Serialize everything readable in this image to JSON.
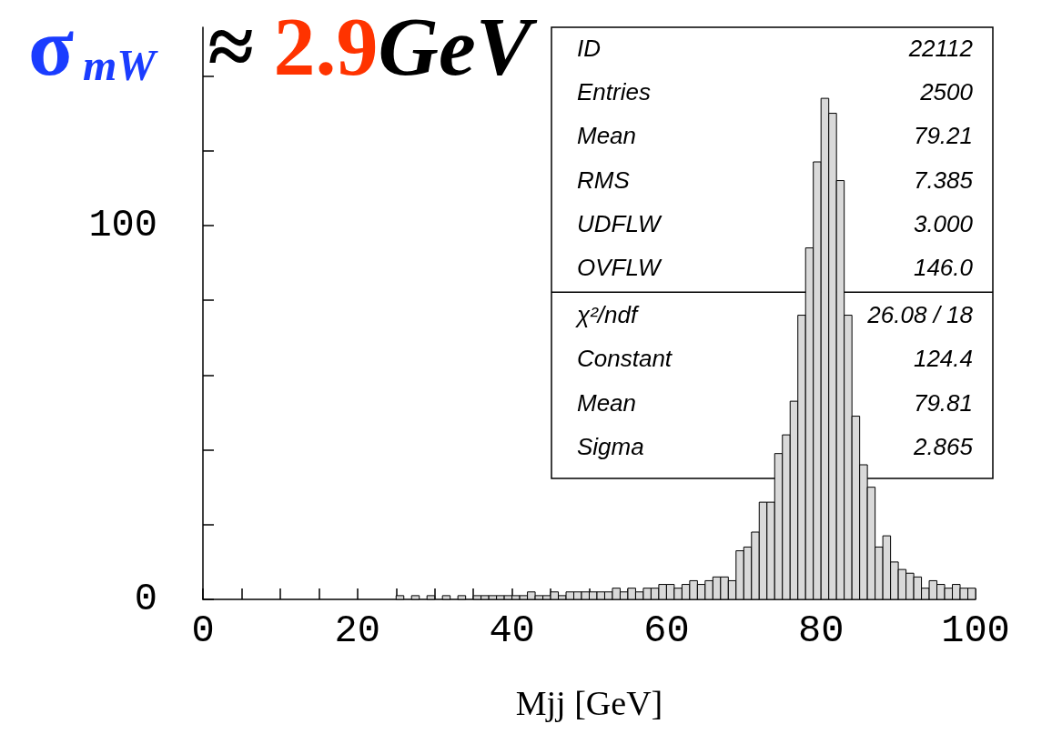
{
  "chart_data": {
    "type": "histogram",
    "title": "σ$_{mW}$≈ 2.9GeV",
    "xlabel": "Mjj [GeV]",
    "bins": [
      0,
      1,
      2,
      3,
      4,
      5,
      6,
      7,
      8,
      9,
      10,
      11,
      12,
      13,
      14,
      15,
      16,
      17,
      18,
      19,
      20,
      21,
      22,
      23,
      24,
      25,
      26,
      27,
      28,
      29,
      30,
      31,
      32,
      33,
      34,
      35,
      36,
      37,
      38,
      39,
      40,
      41,
      42,
      43,
      44,
      45,
      46,
      47,
      48,
      49,
      50,
      51,
      52,
      53,
      54,
      55,
      56,
      57,
      58,
      59,
      60,
      61,
      62,
      63,
      64,
      65,
      66,
      67,
      68,
      69,
      70,
      71,
      72,
      73,
      74,
      75,
      76,
      77,
      78,
      79,
      80,
      81,
      82,
      83,
      84,
      85,
      86,
      87,
      88,
      89,
      90,
      91,
      92,
      93,
      94,
      95,
      96,
      97,
      98,
      99,
      100
    ],
    "values": [
      0,
      0,
      0,
      0,
      0,
      0,
      0,
      0,
      0,
      0,
      0,
      0,
      0,
      0,
      0,
      0,
      0,
      0,
      0,
      0,
      0,
      0,
      0,
      0,
      0,
      1,
      0,
      1,
      0,
      1,
      0,
      1,
      0,
      1,
      0,
      1,
      1,
      1,
      1,
      1,
      1,
      1,
      2,
      1,
      1,
      2,
      1,
      2,
      2,
      2,
      2,
      2,
      2,
      3,
      2,
      3,
      2,
      3,
      3,
      4,
      4,
      3,
      4,
      5,
      4,
      5,
      6,
      6,
      5,
      13,
      14,
      18,
      26,
      26,
      39,
      44,
      53,
      76,
      94,
      117,
      134,
      130,
      112,
      76,
      49,
      36,
      30,
      14,
      17,
      10,
      8,
      7,
      6,
      3,
      5,
      4,
      3,
      4,
      3,
      3
    ],
    "color": "#d9d9d9",
    "xlim": [
      0,
      100
    ],
    "ylim": [
      0,
      153
    ],
    "xticks": [
      0,
      {
        "value": 5,
        "label": null
      },
      {
        "value": 10,
        "label": null
      },
      {
        "value": 15,
        "label": null
      },
      20,
      {
        "value": 25,
        "label": null
      },
      {
        "value": 30,
        "label": null
      },
      {
        "value": 35,
        "label": null
      },
      40,
      {
        "value": 45,
        "label": null
      },
      {
        "value": 50,
        "label": null
      },
      {
        "value": 55,
        "label": null
      },
      60,
      {
        "value": 65,
        "label": null
      },
      {
        "value": 70,
        "label": null
      },
      {
        "value": 75,
        "label": null
      },
      80,
      {
        "value": 85,
        "label": null
      },
      {
        "value": 90,
        "label": null
      },
      {
        "value": 95,
        "label": null
      },
      100
    ],
    "yticks": [
      0,
      {
        "value": 20,
        "label": null
      },
      {
        "value": 40,
        "label": null
      },
      {
        "value": 60,
        "label": null
      },
      {
        "value": 80,
        "label": null
      },
      100,
      {
        "value": 120,
        "label": null
      },
      {
        "value": 140,
        "label": null
      }
    ],
    "annotations": [
      "ID 22112",
      "Entries 2500",
      "Mean 79.21",
      "RMS 7.385",
      "UDFLW 3.000",
      "OVFLW 146.0",
      "χ²/ndf 26.08 / 18",
      "Constant 124.4",
      "Mean 79.81",
      "Sigma 2.865"
    ],
    "grid": false
  }
}
